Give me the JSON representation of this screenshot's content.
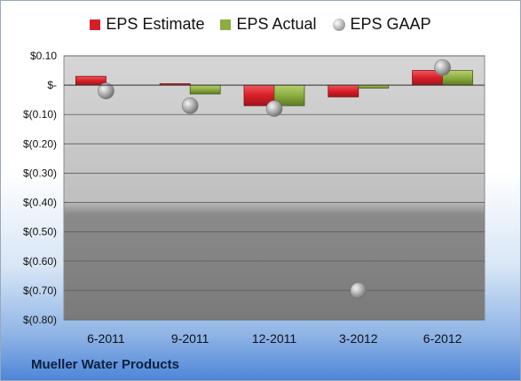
{
  "company": "Mueller Water Products",
  "colors": {
    "estimate": "#d81f28",
    "actual": "#8cad3f",
    "gaap": "#a8a8a8"
  },
  "chart_data": {
    "type": "bar",
    "categories": [
      "6-2011",
      "9-2011",
      "12-2011",
      "3-2012",
      "6-2012"
    ],
    "series": [
      {
        "name": "EPS Estimate",
        "kind": "bar",
        "values": [
          0.03,
          0.005,
          -0.07,
          -0.04,
          0.05
        ]
      },
      {
        "name": "EPS Actual",
        "kind": "bar",
        "values": [
          0.0,
          -0.03,
          -0.07,
          -0.01,
          0.05
        ]
      },
      {
        "name": "EPS GAAP",
        "kind": "scatter",
        "values": [
          -0.02,
          -0.07,
          -0.08,
          -0.7,
          0.06
        ]
      }
    ],
    "yticks": [
      "$0.10",
      "$-",
      "$(0.10)",
      "$(0.20)",
      "$(0.30)",
      "$(0.40)",
      "$(0.50)",
      "$(0.60)",
      "$(0.70)",
      "$(0.80)"
    ],
    "ylim": [
      -0.8,
      0.1
    ],
    "legend": "top",
    "grid": true
  }
}
